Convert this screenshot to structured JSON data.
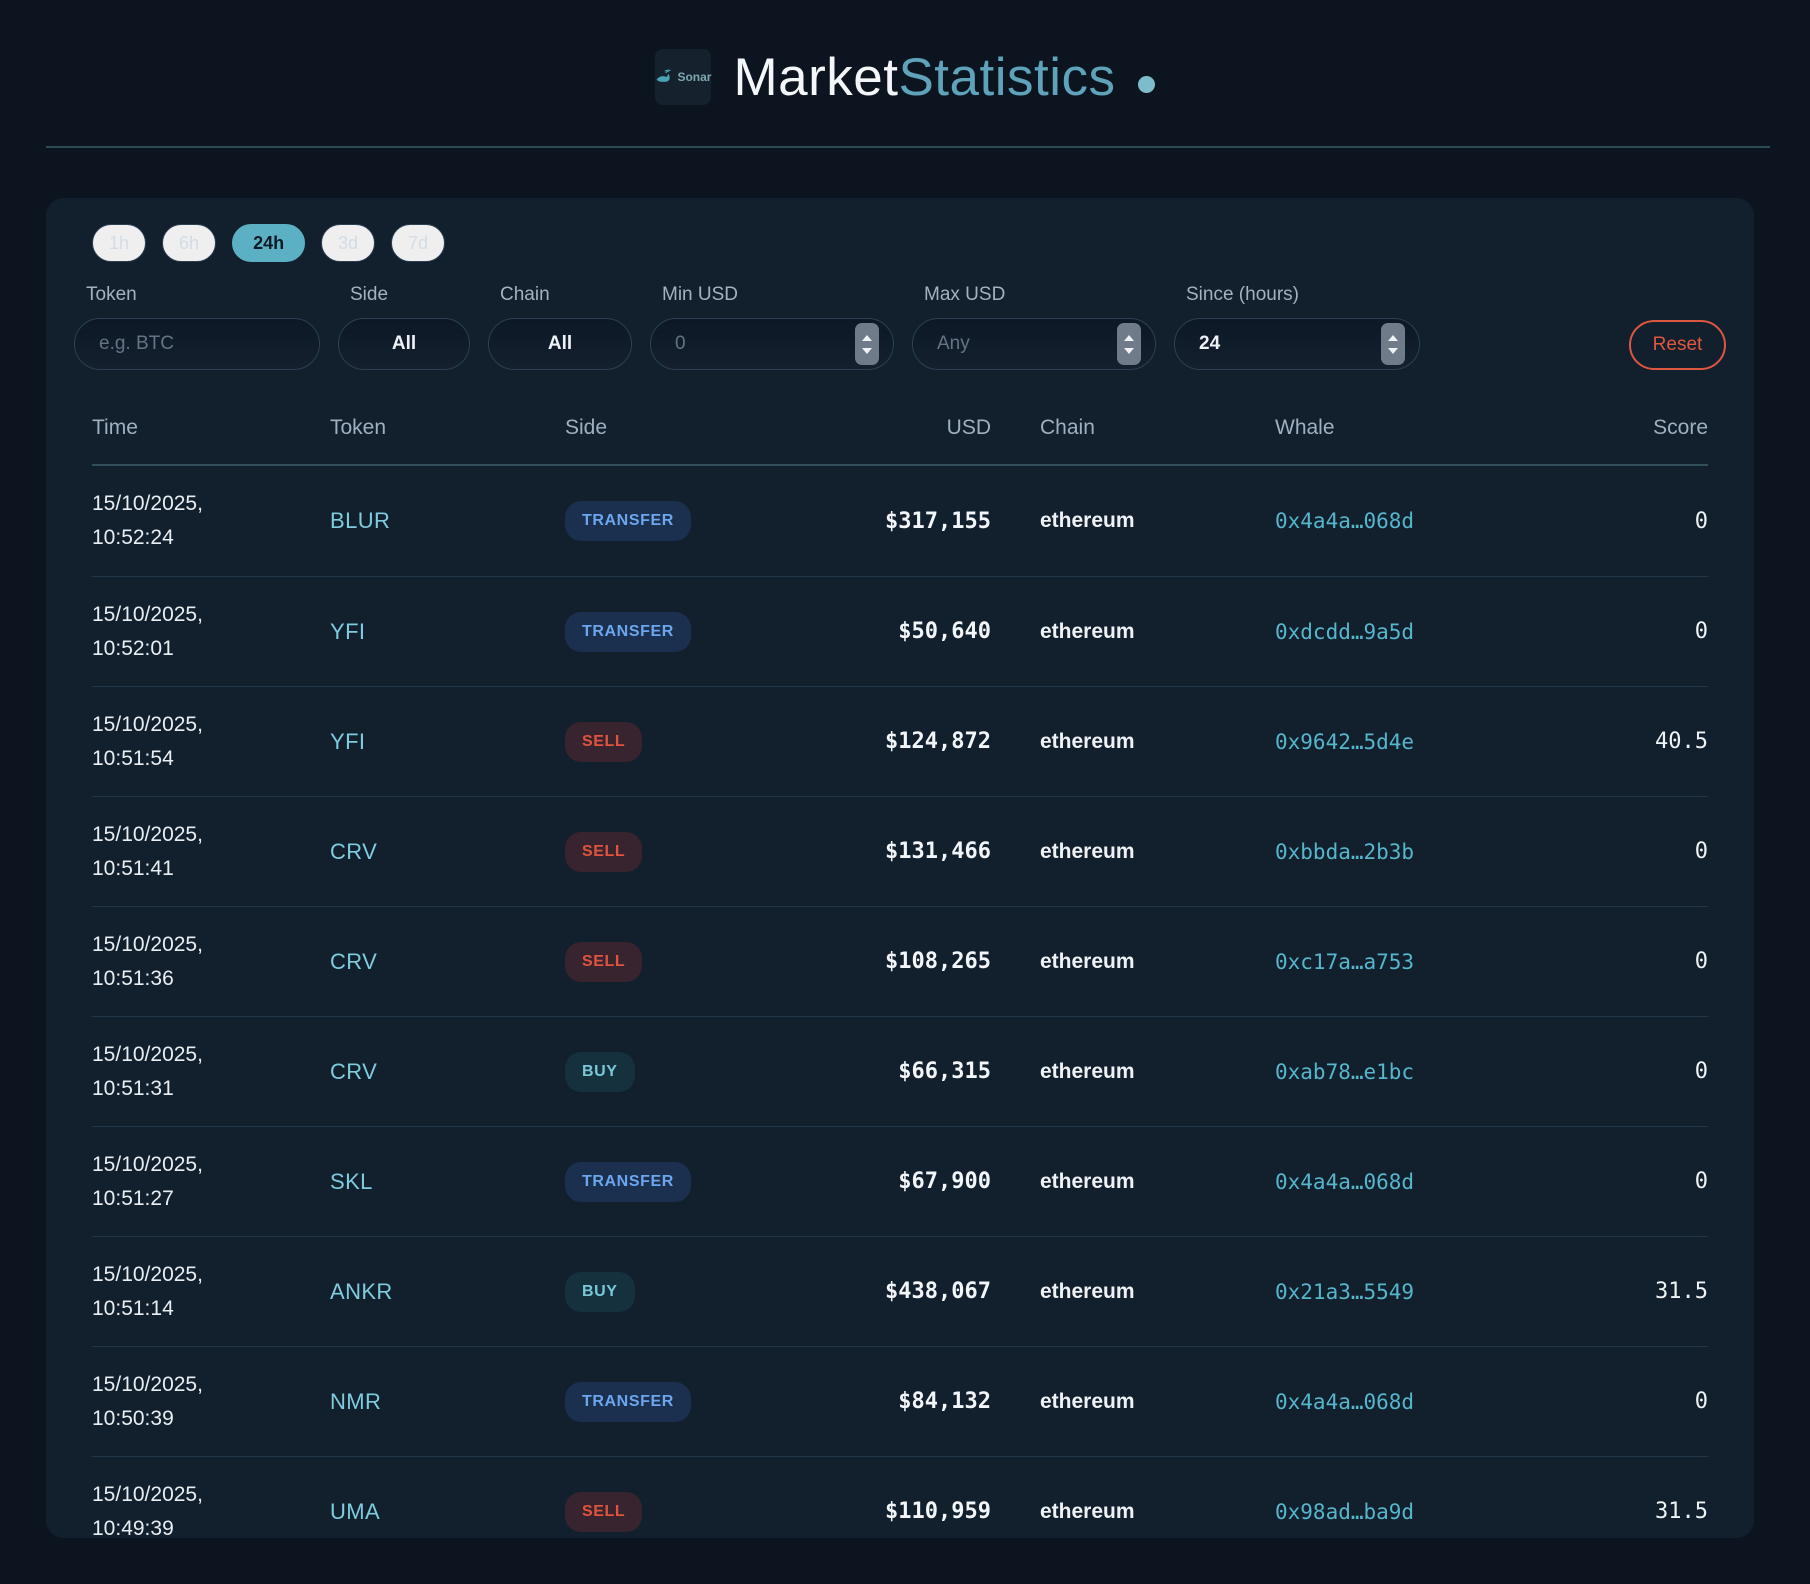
{
  "header": {
    "logo_text": "Sonar",
    "title_primary": "Market",
    "title_secondary": "Statistics"
  },
  "filters": {
    "ranges": [
      {
        "label": "1h",
        "active": false
      },
      {
        "label": "6h",
        "active": false
      },
      {
        "label": "24h",
        "active": true
      },
      {
        "label": "3d",
        "active": false
      },
      {
        "label": "7d",
        "active": false
      }
    ],
    "fields": [
      {
        "label": "Token",
        "control": "text-input",
        "text": "e.g. BTC",
        "muted": true,
        "spinner": false,
        "centered": false
      },
      {
        "label": "Side",
        "control": "select",
        "text": "All",
        "muted": false,
        "spinner": false,
        "centered": true
      },
      {
        "label": "Chain",
        "control": "select",
        "text": "All",
        "muted": false,
        "spinner": false,
        "centered": true
      },
      {
        "label": "Min USD",
        "control": "number-input",
        "text": "0",
        "muted": true,
        "spinner": true,
        "centered": false
      },
      {
        "label": "Max USD",
        "control": "number-input",
        "text": "Any",
        "muted": true,
        "spinner": true,
        "centered": false
      },
      {
        "label": "Since (hours)",
        "control": "number-input",
        "text": "24",
        "muted": false,
        "spinner": true,
        "centered": false
      }
    ],
    "reset_label": "Reset"
  },
  "table": {
    "columns": [
      "Time",
      "Token",
      "Side",
      "USD",
      "Chain",
      "Whale",
      "Score"
    ],
    "rows": [
      {
        "time_line1": "15/10/2025,",
        "time_line2": "10:52:24",
        "token": "BLUR",
        "side": "TRANSFER",
        "usd": "$317,155",
        "chain": "ethereum",
        "whale": "0x4a4a…068d",
        "score": "0"
      },
      {
        "time_line1": "15/10/2025,",
        "time_line2": "10:52:01",
        "token": "YFI",
        "side": "TRANSFER",
        "usd": "$50,640",
        "chain": "ethereum",
        "whale": "0xdcdd…9a5d",
        "score": "0"
      },
      {
        "time_line1": "15/10/2025,",
        "time_line2": "10:51:54",
        "token": "YFI",
        "side": "SELL",
        "usd": "$124,872",
        "chain": "ethereum",
        "whale": "0x9642…5d4e",
        "score": "40.5"
      },
      {
        "time_line1": "15/10/2025,",
        "time_line2": "10:51:41",
        "token": "CRV",
        "side": "SELL",
        "usd": "$131,466",
        "chain": "ethereum",
        "whale": "0xbbda…2b3b",
        "score": "0"
      },
      {
        "time_line1": "15/10/2025,",
        "time_line2": "10:51:36",
        "token": "CRV",
        "side": "SELL",
        "usd": "$108,265",
        "chain": "ethereum",
        "whale": "0xc17a…a753",
        "score": "0"
      },
      {
        "time_line1": "15/10/2025,",
        "time_line2": "10:51:31",
        "token": "CRV",
        "side": "BUY",
        "usd": "$66,315",
        "chain": "ethereum",
        "whale": "0xab78…e1bc",
        "score": "0"
      },
      {
        "time_line1": "15/10/2025,",
        "time_line2": "10:51:27",
        "token": "SKL",
        "side": "TRANSFER",
        "usd": "$67,900",
        "chain": "ethereum",
        "whale": "0x4a4a…068d",
        "score": "0"
      },
      {
        "time_line1": "15/10/2025,",
        "time_line2": "10:51:14",
        "token": "ANKR",
        "side": "BUY",
        "usd": "$438,067",
        "chain": "ethereum",
        "whale": "0x21a3…5549",
        "score": "31.5"
      },
      {
        "time_line1": "15/10/2025,",
        "time_line2": "10:50:39",
        "token": "NMR",
        "side": "TRANSFER",
        "usd": "$84,132",
        "chain": "ethereum",
        "whale": "0x4a4a…068d",
        "score": "0"
      },
      {
        "time_line1": "15/10/2025,",
        "time_line2": "10:49:39",
        "token": "UMA",
        "side": "SELL",
        "usd": "$110,959",
        "chain": "ethereum",
        "whale": "0x98ad…ba9d",
        "score": "31.5"
      }
    ]
  },
  "colors": {
    "accent_teal": "#5cb0c3",
    "buy": "#7bc8d9",
    "sell": "#e0543f",
    "transfer": "#6ca6ee",
    "reset": "#de5740",
    "whale_link": "#56b6cc"
  }
}
